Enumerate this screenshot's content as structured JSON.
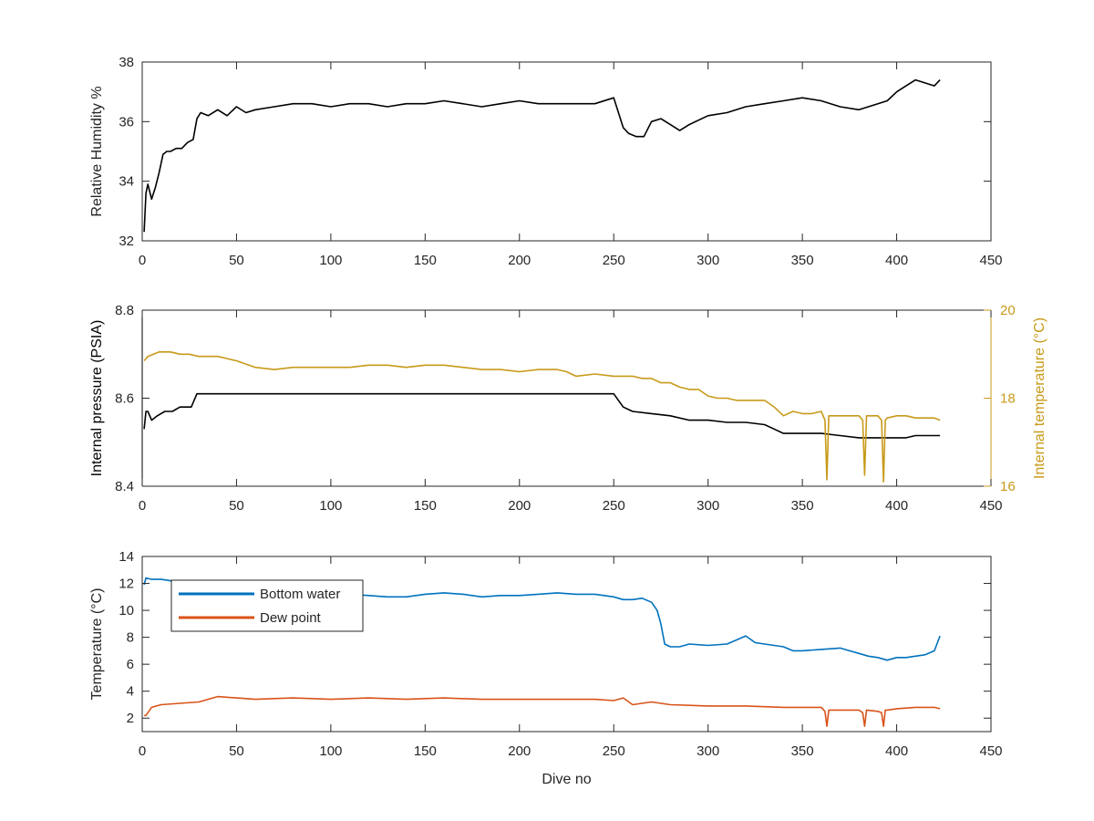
{
  "colors": {
    "black": "#000000",
    "internal_temperature": "#C89A19",
    "bottom_water": "#0072BD",
    "dew_point": "#D95319",
    "axis": "#262626"
  },
  "chart_data": [
    {
      "type": "line",
      "xlim": [
        0,
        450
      ],
      "ylim": [
        32,
        38
      ],
      "xticks": [
        "0",
        "50",
        "100",
        "150",
        "200",
        "250",
        "300",
        "350",
        "400",
        "450"
      ],
      "yticks": [
        "32",
        "34",
        "36",
        "38"
      ],
      "ylabel": "Relative Humidity %",
      "xlabel": "",
      "series": [
        {
          "color": "black",
          "x": [
            1,
            2,
            3,
            5,
            7,
            9,
            11,
            13,
            15,
            18,
            21,
            24,
            27,
            29,
            31,
            35,
            40,
            45,
            50,
            55,
            60,
            70,
            80,
            90,
            100,
            110,
            120,
            130,
            140,
            150,
            160,
            170,
            180,
            190,
            200,
            210,
            220,
            230,
            240,
            250,
            255,
            258,
            262,
            266,
            270,
            275,
            280,
            285,
            290,
            300,
            310,
            320,
            330,
            340,
            350,
            360,
            370,
            380,
            390,
            395,
            400,
            405,
            410,
            415,
            420,
            423
          ],
          "y": [
            32.3,
            33.6,
            33.9,
            33.4,
            33.8,
            34.3,
            34.9,
            35.0,
            35.0,
            35.1,
            35.1,
            35.3,
            35.4,
            36.1,
            36.3,
            36.2,
            36.4,
            36.2,
            36.5,
            36.3,
            36.4,
            36.5,
            36.6,
            36.6,
            36.5,
            36.6,
            36.6,
            36.5,
            36.6,
            36.6,
            36.7,
            36.6,
            36.5,
            36.6,
            36.7,
            36.6,
            36.6,
            36.6,
            36.6,
            36.8,
            35.8,
            35.6,
            35.5,
            35.5,
            36.0,
            36.1,
            35.9,
            35.7,
            35.9,
            36.2,
            36.3,
            36.5,
            36.6,
            36.7,
            36.8,
            36.7,
            36.5,
            36.4,
            36.6,
            36.7,
            37.0,
            37.2,
            37.4,
            37.3,
            37.2,
            37.4
          ]
        }
      ]
    },
    {
      "type": "line",
      "xlim": [
        0,
        450
      ],
      "ylim": [
        8.4,
        8.8
      ],
      "y2lim": [
        16,
        20
      ],
      "xticks": [
        "0",
        "50",
        "100",
        "150",
        "200",
        "250",
        "300",
        "350",
        "400",
        "450"
      ],
      "yticks": [
        "8.4",
        "8.6",
        "8.8"
      ],
      "y2ticks": [
        "16",
        "18",
        "20"
      ],
      "ylabel": "Internal pressure (PSIA)",
      "y2label": "Internal temperature (°C)",
      "xlabel": "",
      "series": [
        {
          "color": "black",
          "axis": "left",
          "x": [
            1,
            2,
            3,
            5,
            8,
            12,
            16,
            20,
            26,
            29,
            35,
            50,
            100,
            150,
            200,
            250,
            255,
            260,
            270,
            280,
            290,
            300,
            310,
            320,
            330,
            335,
            340,
            350,
            360,
            370,
            380,
            390,
            395,
            400,
            405,
            410,
            420,
            423
          ],
          "y": [
            8.53,
            8.57,
            8.57,
            8.55,
            8.56,
            8.57,
            8.57,
            8.58,
            8.58,
            8.61,
            8.61,
            8.61,
            8.61,
            8.61,
            8.61,
            8.61,
            8.58,
            8.57,
            8.565,
            8.56,
            8.55,
            8.55,
            8.545,
            8.545,
            8.54,
            8.53,
            8.52,
            8.52,
            8.52,
            8.515,
            8.51,
            8.51,
            8.51,
            8.51,
            8.51,
            8.515,
            8.515,
            8.515
          ]
        },
        {
          "color": "internal_temperature",
          "axis": "right",
          "x": [
            1,
            3,
            6,
            9,
            15,
            20,
            25,
            30,
            40,
            45,
            50,
            60,
            70,
            80,
            90,
            100,
            110,
            120,
            130,
            140,
            150,
            160,
            170,
            180,
            190,
            200,
            210,
            220,
            225,
            230,
            240,
            250,
            260,
            265,
            270,
            275,
            280,
            285,
            290,
            295,
            300,
            305,
            310,
            315,
            320,
            325,
            330,
            335,
            340,
            345,
            350,
            355,
            360,
            362,
            363,
            364,
            370,
            380,
            382,
            383,
            384,
            390,
            392,
            393,
            394,
            395,
            400,
            405,
            410,
            415,
            420,
            423
          ],
          "y": [
            18.85,
            18.95,
            19.0,
            19.05,
            19.05,
            19.0,
            19.0,
            18.95,
            18.95,
            18.9,
            18.85,
            18.7,
            18.65,
            18.7,
            18.7,
            18.7,
            18.7,
            18.75,
            18.75,
            18.7,
            18.75,
            18.75,
            18.7,
            18.65,
            18.65,
            18.6,
            18.65,
            18.65,
            18.6,
            18.5,
            18.55,
            18.5,
            18.5,
            18.45,
            18.45,
            18.35,
            18.35,
            18.25,
            18.2,
            18.2,
            18.05,
            18.0,
            18.0,
            17.95,
            17.95,
            17.95,
            17.95,
            17.8,
            17.6,
            17.7,
            17.65,
            17.65,
            17.7,
            17.5,
            16.15,
            17.6,
            17.6,
            17.6,
            17.5,
            16.25,
            17.6,
            17.6,
            17.5,
            16.1,
            17.5,
            17.55,
            17.6,
            17.6,
            17.55,
            17.55,
            17.55,
            17.5
          ]
        }
      ]
    },
    {
      "type": "line",
      "xlim": [
        0,
        450
      ],
      "ylim": [
        1,
        14
      ],
      "xticks": [
        "0",
        "50",
        "100",
        "150",
        "200",
        "250",
        "300",
        "350",
        "400",
        "450"
      ],
      "yticks": [
        "2",
        "4",
        "6",
        "8",
        "10",
        "12",
        "14"
      ],
      "ylabel": "Temperature (°C)",
      "xlabel": "Dive no",
      "legend": "top-left",
      "series": [
        {
          "name": "Bottom water",
          "color": "bottom_water",
          "x": [
            1,
            2,
            5,
            10,
            15,
            20,
            30,
            40,
            50,
            60,
            70,
            80,
            90,
            100,
            110,
            120,
            130,
            140,
            150,
            160,
            170,
            180,
            190,
            200,
            210,
            220,
            230,
            240,
            250,
            255,
            260,
            265,
            270,
            273,
            275,
            277,
            280,
            285,
            290,
            300,
            310,
            315,
            320,
            325,
            330,
            340,
            345,
            350,
            360,
            370,
            375,
            380,
            385,
            390,
            395,
            400,
            405,
            410,
            415,
            420,
            423
          ],
          "y": [
            11.9,
            12.4,
            12.3,
            12.3,
            12.2,
            11.6,
            11.3,
            11.2,
            11.2,
            11.1,
            11.3,
            11.3,
            11.2,
            11.2,
            11.2,
            11.1,
            11.0,
            11.0,
            11.2,
            11.3,
            11.2,
            11.0,
            11.1,
            11.1,
            11.2,
            11.3,
            11.2,
            11.2,
            11.0,
            10.8,
            10.8,
            10.9,
            10.6,
            10.0,
            9.0,
            7.5,
            7.3,
            7.3,
            7.5,
            7.4,
            7.5,
            7.8,
            8.1,
            7.6,
            7.5,
            7.3,
            7.0,
            7.0,
            7.1,
            7.2,
            7.0,
            6.8,
            6.6,
            6.5,
            6.3,
            6.5,
            6.5,
            6.6,
            6.7,
            7.0,
            8.1
          ]
        },
        {
          "name": "Dew point",
          "color": "dew_point",
          "x": [
            1,
            2,
            5,
            10,
            20,
            30,
            40,
            50,
            60,
            80,
            100,
            120,
            140,
            160,
            180,
            200,
            220,
            240,
            250,
            255,
            260,
            270,
            280,
            300,
            320,
            340,
            350,
            360,
            362,
            363,
            364,
            370,
            380,
            382,
            383,
            384,
            390,
            392,
            393,
            394,
            395,
            400,
            410,
            420,
            423
          ],
          "y": [
            2.2,
            2.2,
            2.8,
            3.0,
            3.1,
            3.2,
            3.6,
            3.5,
            3.4,
            3.5,
            3.4,
            3.5,
            3.4,
            3.5,
            3.4,
            3.4,
            3.4,
            3.4,
            3.3,
            3.5,
            3.0,
            3.2,
            3.0,
            2.9,
            2.9,
            2.8,
            2.8,
            2.8,
            2.5,
            1.4,
            2.6,
            2.6,
            2.6,
            2.4,
            1.4,
            2.6,
            2.5,
            2.4,
            1.4,
            2.6,
            2.6,
            2.7,
            2.8,
            2.8,
            2.7
          ]
        }
      ]
    }
  ]
}
